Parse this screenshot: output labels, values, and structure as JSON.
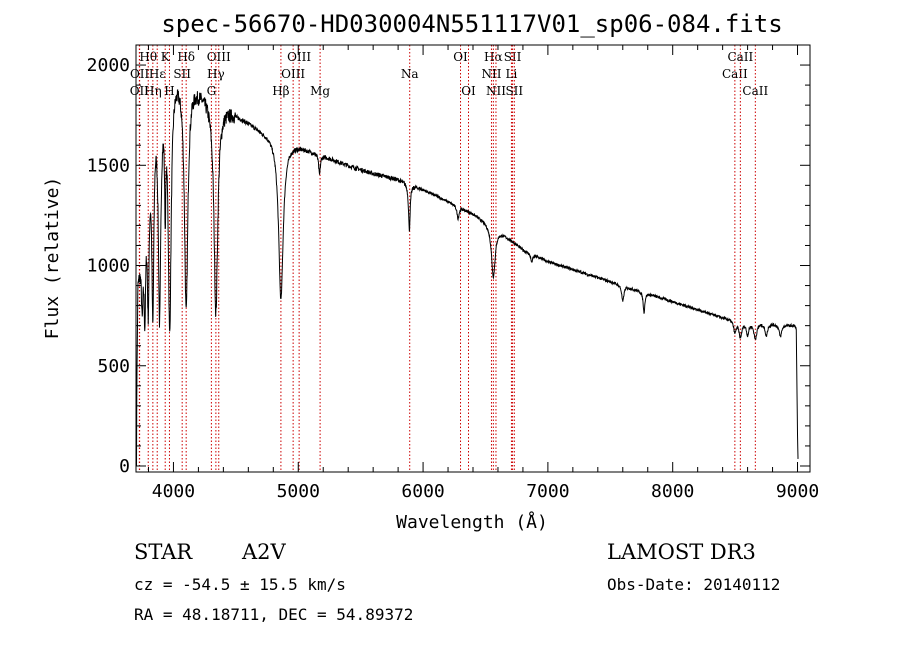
{
  "chart_data": {
    "type": "line",
    "title": "spec-56670-HD030004N551117V01_sp06-084.fits",
    "xlabel": "Wavelength (Å)",
    "ylabel": "Flux (relative)",
    "xlim": [
      3700,
      9100
    ],
    "ylim": [
      -30,
      2100
    ],
    "xticks": [
      4000,
      5000,
      6000,
      7000,
      8000,
      9000
    ],
    "xtick_labels": [
      "4000",
      "5000",
      "6000",
      "7000",
      "8000",
      "9000"
    ],
    "yticks": [
      0,
      500,
      1000,
      1500,
      2000
    ],
    "ytick_labels": [
      "0",
      "500",
      "1000",
      "1500",
      "2000"
    ],
    "continuum": [
      [
        3700,
        0
      ],
      [
        3715,
        950
      ],
      [
        3750,
        1150
      ],
      [
        3800,
        1600
      ],
      [
        3850,
        1850
      ],
      [
        3900,
        1920
      ],
      [
        3950,
        1960
      ],
      [
        4000,
        1990
      ],
      [
        4050,
        1970
      ],
      [
        4100,
        1940
      ],
      [
        4150,
        1920
      ],
      [
        4200,
        1890
      ],
      [
        4300,
        1840
      ],
      [
        4400,
        1800
      ],
      [
        4500,
        1760
      ],
      [
        4600,
        1720
      ],
      [
        4700,
        1680
      ],
      [
        4800,
        1650
      ],
      [
        4900,
        1620
      ],
      [
        5000,
        1600
      ],
      [
        5200,
        1550
      ],
      [
        5400,
        1500
      ],
      [
        5600,
        1460
      ],
      [
        5800,
        1430
      ],
      [
        6000,
        1380
      ],
      [
        6200,
        1320
      ],
      [
        6400,
        1260
      ],
      [
        6600,
        1180
      ],
      [
        6800,
        1080
      ],
      [
        7000,
        1020
      ],
      [
        7200,
        980
      ],
      [
        7400,
        940
      ],
      [
        7600,
        900
      ],
      [
        7800,
        860
      ],
      [
        8000,
        820
      ],
      [
        8200,
        780
      ],
      [
        8400,
        740
      ],
      [
        8600,
        720
      ],
      [
        8800,
        710
      ],
      [
        8980,
        700
      ],
      [
        8990,
        680
      ],
      [
        9000,
        150
      ],
      [
        9005,
        0
      ]
    ],
    "absorption": [
      {
        "w": 3750,
        "depth": 300,
        "width": 8
      },
      {
        "w": 3771,
        "depth": 500,
        "width": 8
      },
      {
        "w": 3798,
        "depth": 700,
        "width": 9
      },
      {
        "w": 3835,
        "depth": 950,
        "width": 10
      },
      {
        "w": 3889,
        "depth": 1100,
        "width": 12
      },
      {
        "w": 3934,
        "depth": 500,
        "width": 6
      },
      {
        "w": 3970,
        "depth": 1250,
        "width": 14
      },
      {
        "w": 4102,
        "depth": 1150,
        "width": 16
      },
      {
        "w": 4340,
        "depth": 1050,
        "width": 18
      },
      {
        "w": 4861,
        "depth": 800,
        "width": 22
      },
      {
        "w": 5170,
        "depth": 100,
        "width": 8
      },
      {
        "w": 5890,
        "depth": 230,
        "width": 8
      },
      {
        "w": 6280,
        "depth": 60,
        "width": 10
      },
      {
        "w": 6563,
        "depth": 250,
        "width": 18
      },
      {
        "w": 6870,
        "depth": 40,
        "width": 10
      },
      {
        "w": 7600,
        "depth": 80,
        "width": 10
      },
      {
        "w": 7770,
        "depth": 100,
        "width": 8
      },
      {
        "w": 8498,
        "depth": 60,
        "width": 12
      },
      {
        "w": 8542,
        "depth": 80,
        "width": 14
      },
      {
        "w": 8600,
        "depth": 60,
        "width": 12
      },
      {
        "w": 8662,
        "depth": 80,
        "width": 14
      },
      {
        "w": 8750,
        "depth": 60,
        "width": 12
      },
      {
        "w": 8863,
        "depth": 60,
        "width": 12
      }
    ],
    "line_markers": [
      {
        "label": "OII",
        "w": 3727,
        "row": 2
      },
      {
        "label": "Hθ",
        "w": 3798,
        "row": 0
      },
      {
        "label": "OII",
        "w": 3729,
        "row": 1
      },
      {
        "label": "Hη",
        "w": 3835,
        "row": 2
      },
      {
        "label": "Hε",
        "w": 3870,
        "row": 1
      },
      {
        "label": "K",
        "w": 3934,
        "row": 0
      },
      {
        "label": "H",
        "w": 3968,
        "row": 2
      },
      {
        "label": "Hδ",
        "w": 4102,
        "row": 0
      },
      {
        "label": "SII",
        "w": 4070,
        "row": 1
      },
      {
        "label": "OIII",
        "w": 4363,
        "row": 0
      },
      {
        "label": "Hγ",
        "w": 4340,
        "row": 1
      },
      {
        "label": "G",
        "w": 4304,
        "row": 2
      },
      {
        "label": "Hβ",
        "w": 4861,
        "row": 2
      },
      {
        "label": "OIII",
        "w": 4959,
        "row": 1
      },
      {
        "label": "OIII",
        "w": 5007,
        "row": 0
      },
      {
        "label": "Mg",
        "w": 5175,
        "row": 2
      },
      {
        "label": "Na",
        "w": 5893,
        "row": 1
      },
      {
        "label": "OI",
        "w": 6300,
        "row": 0
      },
      {
        "label": "OI",
        "w": 6364,
        "row": 2
      },
      {
        "label": "Hα",
        "w": 6563,
        "row": 0
      },
      {
        "label": "NII",
        "w": 6548,
        "row": 1
      },
      {
        "label": "NII",
        "w": 6584,
        "row": 2
      },
      {
        "label": "SII",
        "w": 6717,
        "row": 0
      },
      {
        "label": "Li",
        "w": 6708,
        "row": 1
      },
      {
        "label": "SII",
        "w": 6731,
        "row": 2
      },
      {
        "label": "CaII",
        "w": 8498,
        "row": 1
      },
      {
        "label": "CaII",
        "w": 8542,
        "row": 0
      },
      {
        "label": "CaII",
        "w": 8662,
        "row": 2
      }
    ]
  },
  "info": {
    "object_type": "STAR",
    "subclass": "A2V",
    "survey": "LAMOST DR3",
    "cz": "cz = -54.5 ± 15.5 km/s",
    "obs_date": "Obs-Date: 20140112",
    "coords": "RA =  48.18711, DEC =  54.89372"
  },
  "colors": {
    "spectrum": "#000000",
    "marker": "#cc0000"
  }
}
